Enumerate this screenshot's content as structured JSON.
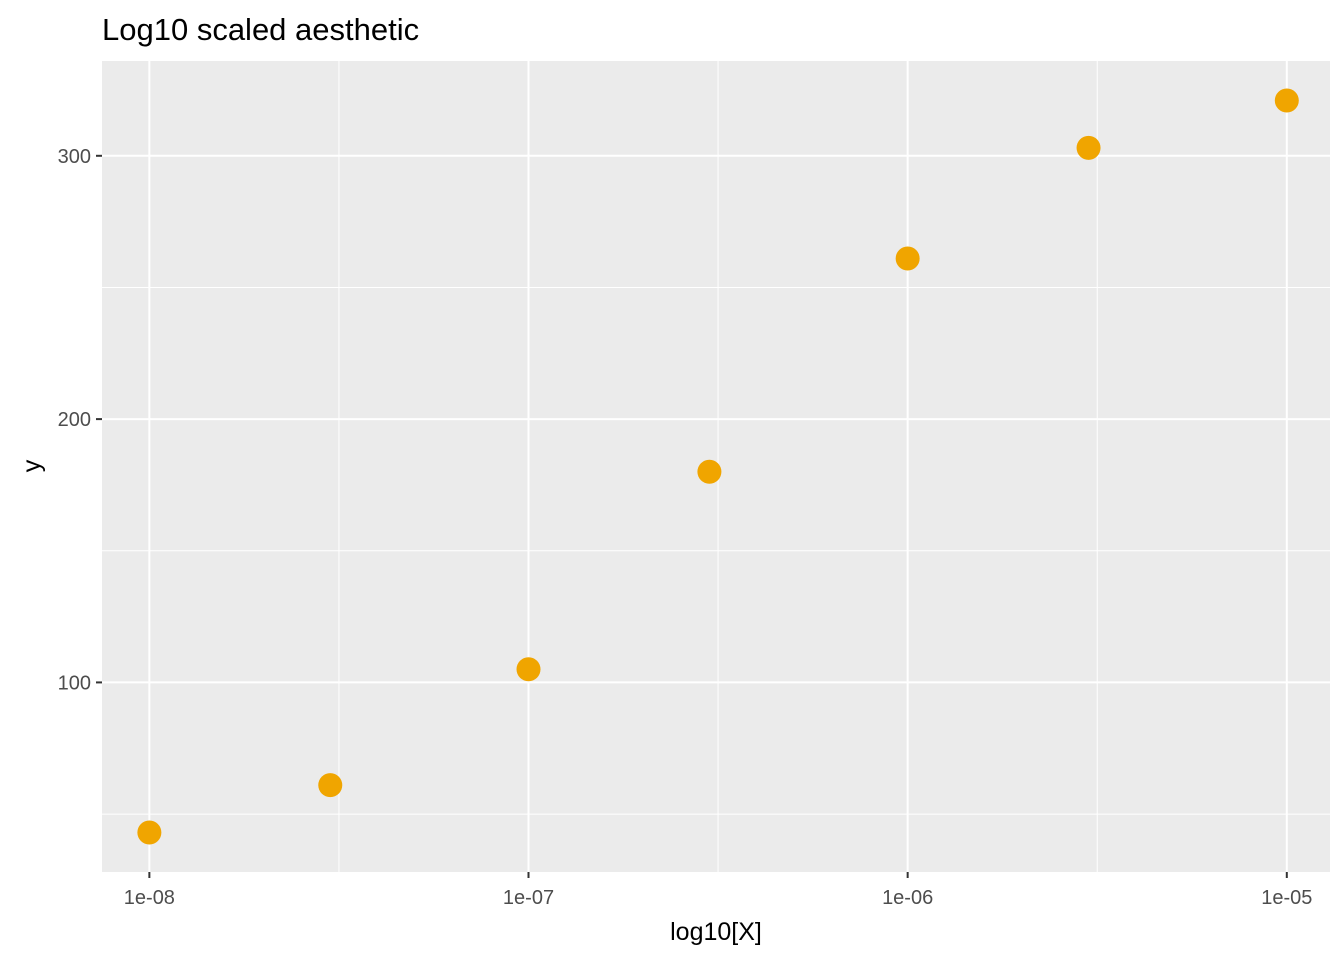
{
  "chart_data": {
    "type": "scatter",
    "title": "Log10 scaled aesthetic",
    "xlabel": "log10[X]",
    "ylabel": "y",
    "x_scale": "log10",
    "x": [
      1e-08,
      3e-08,
      1e-07,
      3e-07,
      1e-06,
      3e-06,
      1e-05
    ],
    "y": [
      43,
      61,
      105,
      180,
      261,
      303,
      321
    ],
    "xlim": [
      7.5e-09,
      1.3e-05
    ],
    "ylim": [
      28,
      336
    ],
    "x_ticks": [
      {
        "value": 1e-08,
        "label": "1e-08"
      },
      {
        "value": 1e-07,
        "label": "1e-07"
      },
      {
        "value": 1e-06,
        "label": "1e-06"
      },
      {
        "value": 1e-05,
        "label": "1e-05"
      }
    ],
    "x_minor_ticks": [
      3.1623e-08,
      3.1623e-07,
      3.1623e-06
    ],
    "y_ticks": [
      {
        "value": 100,
        "label": "100"
      },
      {
        "value": 200,
        "label": "200"
      },
      {
        "value": 300,
        "label": "300"
      }
    ],
    "y_minor_ticks": [
      50,
      150,
      250
    ],
    "grid": true,
    "legend": "none",
    "colors": {
      "point": "#F0A500",
      "panel": "#EBEBEB",
      "grid": "#FFFFFF"
    }
  }
}
